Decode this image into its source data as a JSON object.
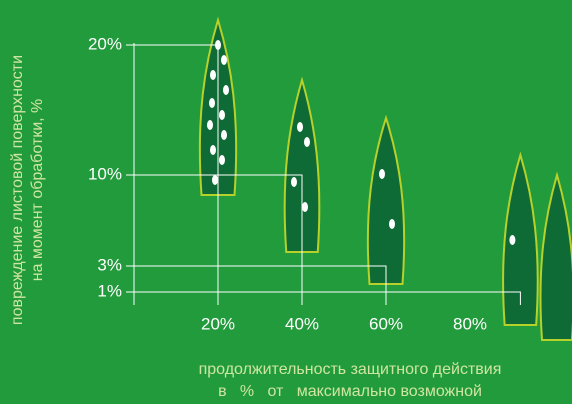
{
  "chart_data": {
    "type": "leaf",
    "y_title": [
      "повреждение листовой поверхности",
      "на момент обработки, %"
    ],
    "x_title": [
      "продолжительность защитного действия",
      "в   %   от   максимально возможной"
    ],
    "x": [
      20,
      40,
      60,
      92
    ],
    "values": [
      20,
      10,
      3,
      1
    ],
    "xlim": [
      0,
      104
    ],
    "ylim": [
      0,
      20
    ],
    "xticks": [
      {
        "value": 20,
        "label": "20%"
      },
      {
        "value": 40,
        "label": "40%"
      },
      {
        "value": 60,
        "label": "60%"
      },
      {
        "value": 80,
        "label": "80%"
      }
    ],
    "yticks": [
      {
        "value": 1,
        "label": "1%"
      },
      {
        "value": 3,
        "label": "3%"
      },
      {
        "value": 10,
        "label": "10%"
      },
      {
        "value": 20,
        "label": "20%"
      }
    ],
    "color": "#ffffff"
  }
}
